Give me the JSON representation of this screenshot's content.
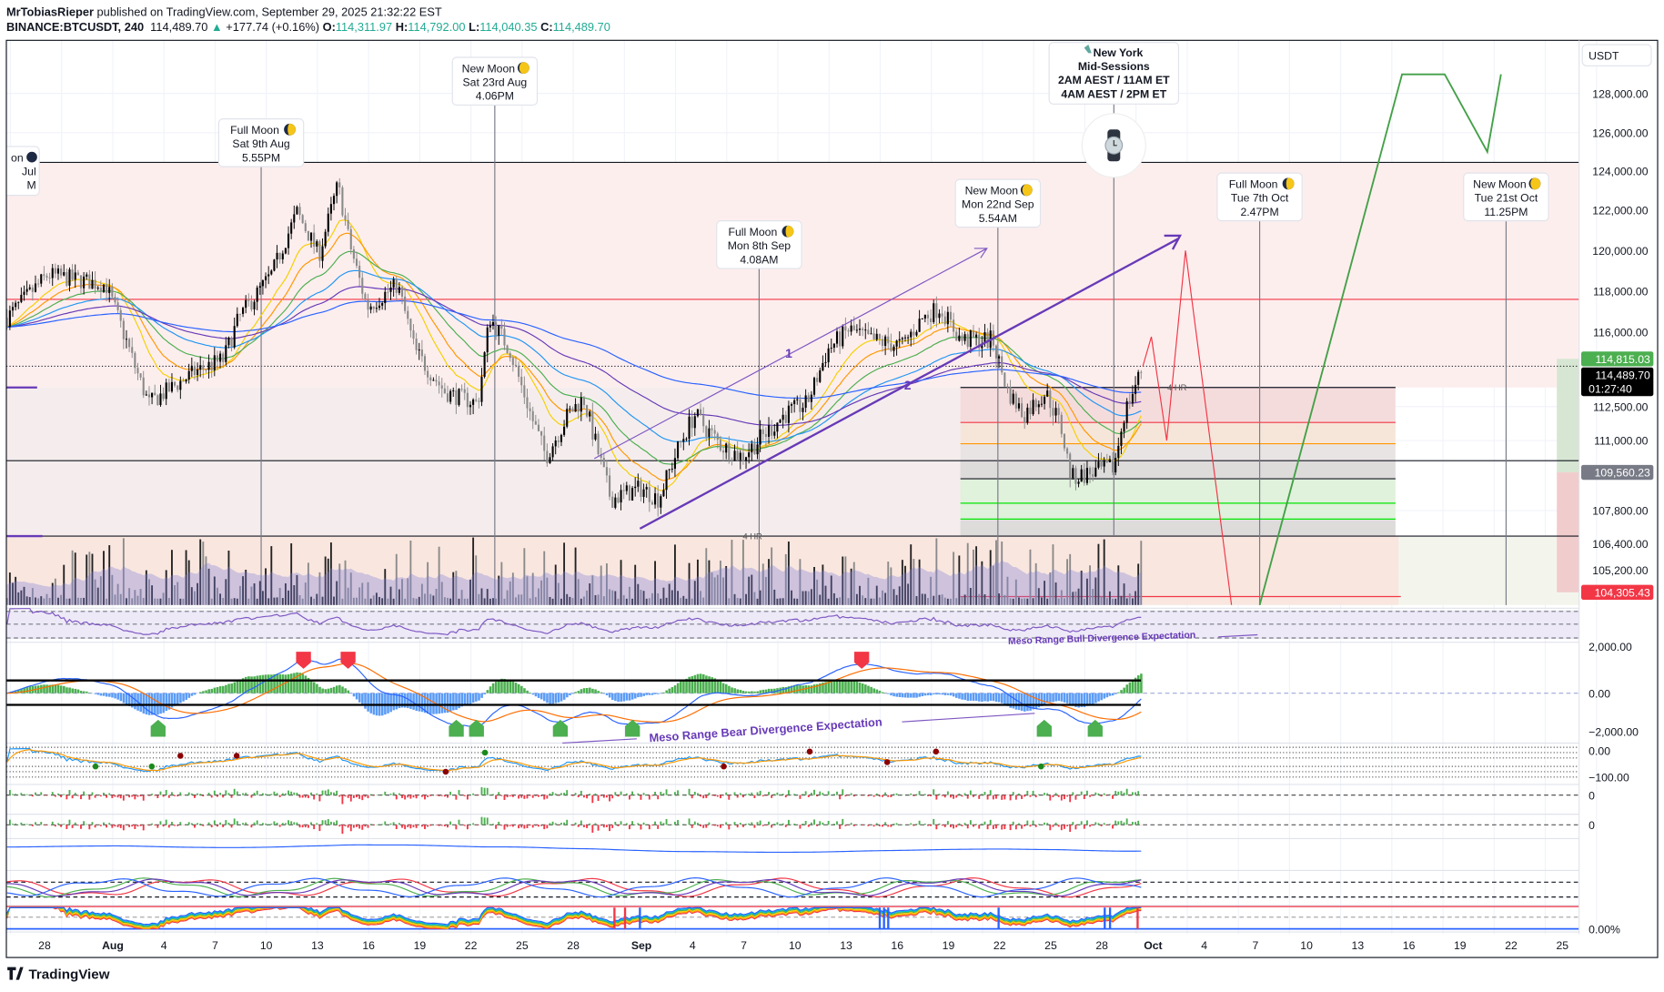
{
  "header": {
    "author": "MrTobiasRieper",
    "published": " published on TradingView.com, September 29, 2025 21:32:22 EST",
    "symbol": "BINANCE:BTCUSDT, 240",
    "last": "114,489.70",
    "change_arrow": "▲",
    "change": "+177.74 (+0.16%)",
    "o_label": "O:",
    "o": "114,311.97",
    "h_label": "H:",
    "h": "114,792.00",
    "l_label": "L:",
    "l": "114,040.35",
    "c_label": "C:",
    "c": "114,489.70"
  },
  "price_axis": {
    "currency": "USDT",
    "labels": [
      "128,000.00",
      "126,000.00",
      "124,000.00",
      "122,000.00",
      "120,000.00",
      "118,000.00",
      "116,000.00",
      "112,500.00",
      "111,000.00",
      "107,800.00",
      "106,400.00",
      "105,200.00"
    ],
    "tags": [
      {
        "value": "114,815.03",
        "color": "#4caf50"
      },
      {
        "value": "114,489.70",
        "sub": "01:27:40",
        "color": "#000000"
      },
      {
        "value": "109,560.23",
        "color": "#787b86"
      },
      {
        "value": "104,305.43",
        "color": "#f23645"
      }
    ]
  },
  "pane_axis": [
    "2,000.00",
    "0.00",
    "−2,000.00",
    "0.00",
    "−100.00",
    "0",
    "0",
    "0.00%"
  ],
  "date_axis": [
    {
      "label": "28",
      "day": 0
    },
    {
      "label": "Aug",
      "day": 4,
      "bold": true
    },
    {
      "label": "4",
      "day": 7
    },
    {
      "label": "7",
      "day": 10
    },
    {
      "label": "10",
      "day": 13
    },
    {
      "label": "13",
      "day": 16
    },
    {
      "label": "16",
      "day": 19
    },
    {
      "label": "19",
      "day": 22
    },
    {
      "label": "22",
      "day": 25
    },
    {
      "label": "25",
      "day": 28
    },
    {
      "label": "28",
      "day": 31
    },
    {
      "label": "Sep",
      "day": 35,
      "bold": true
    },
    {
      "label": "4",
      "day": 38
    },
    {
      "label": "7",
      "day": 41
    },
    {
      "label": "10",
      "day": 44
    },
    {
      "label": "13",
      "day": 47
    },
    {
      "label": "16",
      "day": 50
    },
    {
      "label": "19",
      "day": 53
    },
    {
      "label": "22",
      "day": 56
    },
    {
      "label": "25",
      "day": 59
    },
    {
      "label": "28",
      "day": 62
    },
    {
      "label": "Oct",
      "day": 65,
      "bold": true
    },
    {
      "label": "4",
      "day": 68
    },
    {
      "label": "7",
      "day": 71
    },
    {
      "label": "10",
      "day": 74
    },
    {
      "label": "13",
      "day": 77
    },
    {
      "label": "16",
      "day": 80
    },
    {
      "label": "19",
      "day": 83
    },
    {
      "label": "22",
      "day": 86
    },
    {
      "label": "25",
      "day": 89
    }
  ],
  "annotations": {
    "partial_moon": [
      "on",
      "Jul",
      "M"
    ],
    "moons": [
      {
        "title": "Full Moon",
        "phase": "full",
        "date": "Sat 9th Aug",
        "time": "5.55PM",
        "day": 12.7
      },
      {
        "title": "New Moon",
        "phase": "new",
        "date": "Sat 23rd Aug",
        "time": "4.06PM",
        "day": 26.4
      },
      {
        "title": "Full Moon",
        "phase": "full",
        "date": "Mon 8th Sep",
        "time": "4.08AM",
        "day": 41.9
      },
      {
        "title": "New Moon",
        "phase": "new",
        "date": "Mon 22nd Sep",
        "time": "5.54AM",
        "day": 55.9
      },
      {
        "title": "Full Moon",
        "phase": "full",
        "date": "Tue 7th Oct",
        "time": "2.47PM",
        "day": 71.25
      },
      {
        "title": "New Moon",
        "phase": "new",
        "date": "Tue 21st Oct",
        "time": "11.25PM",
        "day": 85.7
      }
    ],
    "session": {
      "lines": [
        "New York",
        "Mid-Sessions",
        "2AM AEST / 11AM ET",
        "4AM AEST / 2PM ET"
      ],
      "day": 62.7,
      "icon": "watch-icon"
    },
    "tf_label_1": "4 HR",
    "tf_label_2": "4 HR",
    "channel_label_1": "1",
    "channel_label_2": "2",
    "bear_divergence": "Meso Range Bear Divergence Expectation",
    "bull_divergence": "Meso Range Bull Divergence Expectation"
  },
  "footer": {
    "brand": "TradingView"
  },
  "chart_data": {
    "type": "candlestick",
    "title": "BINANCE:BTCUSDT, 240",
    "x_unit": "days since 2025-07-28",
    "y_unit": "USDT",
    "ylim": [
      104000,
      129000
    ],
    "price_path": [
      [
        -2.2,
        116700
      ],
      [
        0.2,
        118800
      ],
      [
        3.6,
        118300
      ],
      [
        6.1,
        112650
      ],
      [
        8.9,
        114250
      ],
      [
        10.5,
        114780
      ],
      [
        11.4,
        116700
      ],
      [
        13.3,
        118800
      ],
      [
        14.8,
        121900
      ],
      [
        16.1,
        119800
      ],
      [
        17.2,
        123300
      ],
      [
        17.9,
        120300
      ],
      [
        18.9,
        117200
      ],
      [
        20.7,
        118300
      ],
      [
        21.7,
        115200
      ],
      [
        23.5,
        113200
      ],
      [
        25.4,
        112650
      ],
      [
        26.1,
        116700
      ],
      [
        27.3,
        115200
      ],
      [
        28.5,
        112150
      ],
      [
        29.4,
        110280
      ],
      [
        30.7,
        112150
      ],
      [
        31.6,
        112900
      ],
      [
        33.2,
        108340
      ],
      [
        35.0,
        108830
      ],
      [
        36.0,
        108340
      ],
      [
        37.2,
        110750
      ],
      [
        38.1,
        112150
      ],
      [
        39.7,
        110750
      ],
      [
        40.9,
        110280
      ],
      [
        43.4,
        112150
      ],
      [
        44.7,
        112650
      ],
      [
        45.9,
        115200
      ],
      [
        47.2,
        116150
      ],
      [
        48.4,
        115650
      ],
      [
        50.3,
        115400
      ],
      [
        51.5,
        116700
      ],
      [
        52.5,
        117200
      ],
      [
        53.7,
        115650
      ],
      [
        55.6,
        115650
      ],
      [
        56.5,
        113200
      ],
      [
        57.4,
        112150
      ],
      [
        58.7,
        113200
      ],
      [
        59.6,
        111600
      ],
      [
        60.2,
        109300
      ],
      [
        61.5,
        109560
      ],
      [
        62.7,
        109800
      ],
      [
        63.3,
        112150
      ],
      [
        64.4,
        114490
      ]
    ],
    "levels": [
      124400,
      117700,
      113500,
      111800,
      110900,
      110000,
      109300,
      108600,
      107900,
      106450
    ],
    "projection_bear": [
      [
        64.4,
        114490
      ],
      [
        64.9,
        115800
      ],
      [
        65.8,
        111000
      ],
      [
        66.9,
        120000
      ],
      [
        69.6,
        104000
      ]
    ],
    "projection_bull": [
      [
        71.25,
        104000
      ],
      [
        79.6,
        129000
      ],
      [
        82.1,
        129000
      ],
      [
        84.6,
        125000
      ],
      [
        85.4,
        129000
      ]
    ],
    "moving_averages": [
      8,
      13,
      21,
      34,
      55,
      100
    ]
  }
}
